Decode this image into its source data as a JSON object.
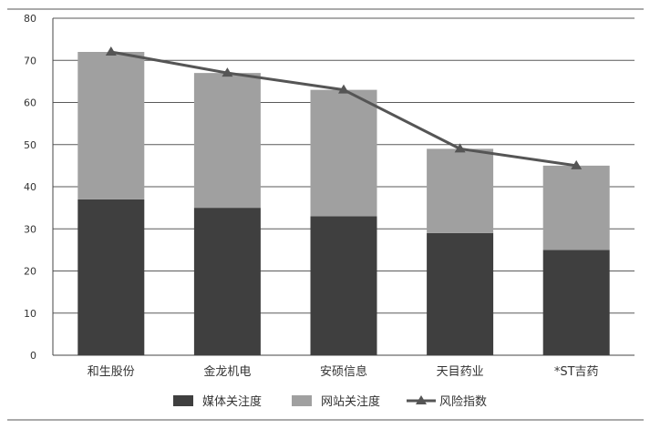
{
  "chart_data": {
    "type": "bar",
    "stacked": true,
    "categories": [
      "和生股份",
      "金龙机电",
      "安硕信息",
      "天目药业",
      "*ST吉药"
    ],
    "series": [
      {
        "name": "媒体关注度",
        "kind": "bar",
        "color": "#3f3f3f",
        "values": [
          37,
          35,
          33,
          29,
          25
        ]
      },
      {
        "name": "网站关注度",
        "kind": "bar",
        "color": "#a0a0a0",
        "values": [
          35,
          32,
          30,
          20,
          20
        ]
      },
      {
        "name": "风险指数",
        "kind": "line",
        "color": "#555555",
        "marker": "triangle",
        "values": [
          72,
          67,
          63,
          49,
          45
        ]
      }
    ],
    "yticks": [
      "0",
      "10",
      "20",
      "30",
      "40",
      "50",
      "60",
      "70",
      "80"
    ],
    "ylim": [
      0,
      80
    ],
    "grid": true,
    "legend": "bottom"
  }
}
